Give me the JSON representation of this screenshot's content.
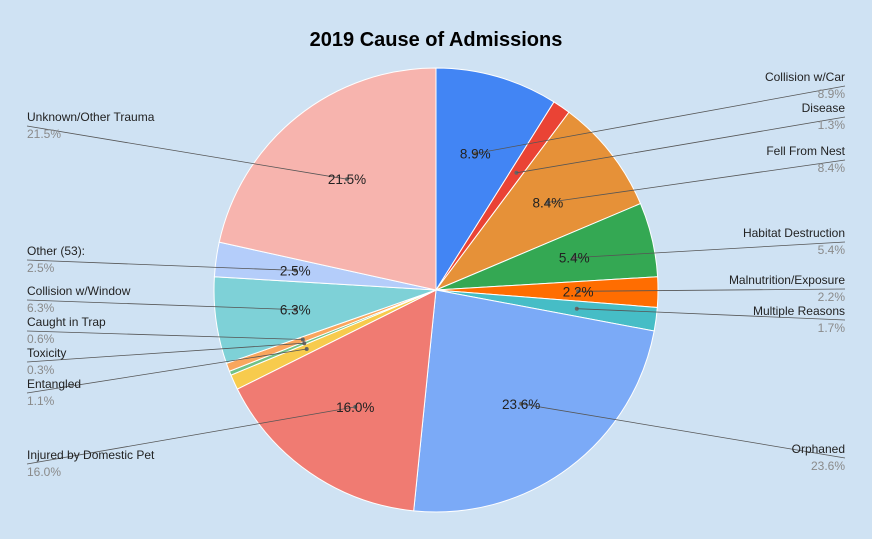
{
  "chart_data": {
    "type": "pie",
    "title": "2019 Cause of Admissions",
    "slices": [
      {
        "label": "Collision w/Car",
        "value": 8.9,
        "pct": "8.9%",
        "color": "#4285f4"
      },
      {
        "label": "Disease",
        "value": 1.3,
        "pct": "1.3%",
        "color": "#ea4335"
      },
      {
        "label": "Fell From Nest",
        "value": 8.4,
        "pct": "8.4%",
        "color": "#e69138"
      },
      {
        "label": "Habitat Destruction",
        "value": 5.4,
        "pct": "5.4%",
        "color": "#34a853"
      },
      {
        "label": "Malnutrition/Exposure",
        "value": 2.2,
        "pct": "2.2%",
        "color": "#ff6d01"
      },
      {
        "label": "Multiple Reasons",
        "value": 1.7,
        "pct": "1.7%",
        "color": "#46bdc6"
      },
      {
        "label": "Orphaned",
        "value": 23.6,
        "pct": "23.6%",
        "color": "#7baaf7"
      },
      {
        "label": "Injured by Domestic Pet",
        "value": 16.0,
        "pct": "16.0%",
        "color": "#f07b72"
      },
      {
        "label": "Entangled",
        "value": 1.1,
        "pct": "1.1%",
        "color": "#f7cb4d"
      },
      {
        "label": "Toxicity",
        "value": 0.3,
        "pct": "0.3%",
        "color": "#71c287"
      },
      {
        "label": "Caught in Trap",
        "value": 0.6,
        "pct": "0.6%",
        "color": "#f9a65d"
      },
      {
        "label": "Collision w/Window",
        "value": 6.3,
        "pct": "6.3%",
        "color": "#7ed1d7"
      },
      {
        "label": "Other (53):",
        "value": 2.5,
        "pct": "2.5%",
        "color": "#b4cdfa"
      },
      {
        "label": "Unknown/Other Trauma",
        "value": 21.5,
        "pct": "21.5%",
        "color": "#f7b4ae"
      }
    ]
  }
}
